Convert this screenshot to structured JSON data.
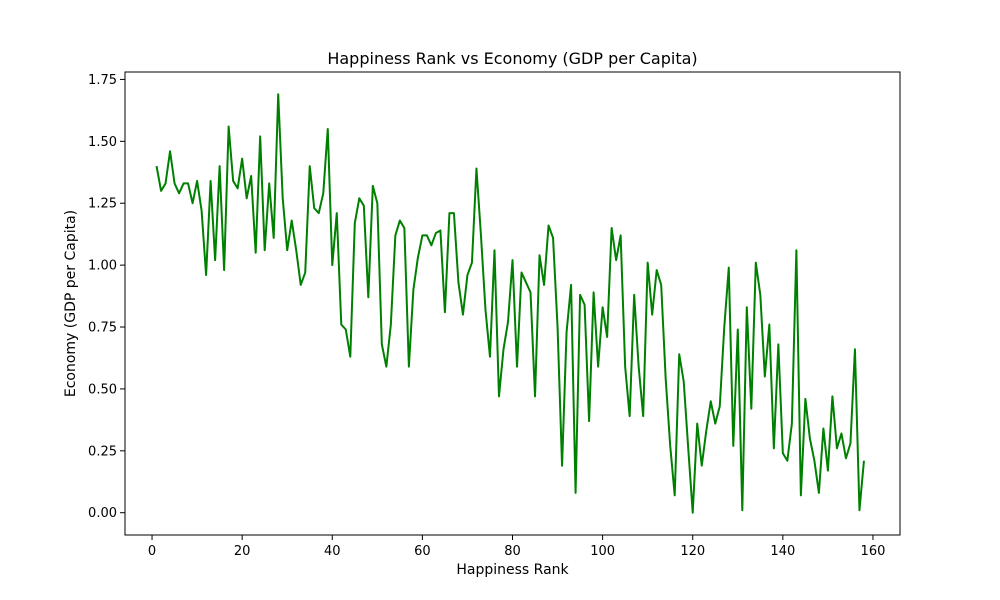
{
  "chart_data": {
    "type": "line",
    "title": "Happiness Rank vs Economy (GDP per Capita)",
    "xlabel": "Happiness Rank",
    "ylabel": "Economy (GDP per Capita)",
    "xlim": [
      -6,
      166
    ],
    "ylim": [
      -0.09,
      1.78
    ],
    "xticks": [
      0,
      20,
      40,
      60,
      80,
      100,
      120,
      140,
      160
    ],
    "xtick_labels": [
      "0",
      "20",
      "40",
      "60",
      "80",
      "100",
      "120",
      "140",
      "160"
    ],
    "yticks": [
      0.0,
      0.25,
      0.5,
      0.75,
      1.0,
      1.25,
      1.5,
      1.75
    ],
    "ytick_labels": [
      "0.00",
      "0.25",
      "0.50",
      "0.75",
      "1.00",
      "1.25",
      "1.50",
      "1.75"
    ],
    "grid": false,
    "series": [
      {
        "color": "#008000",
        "x": [
          1,
          2,
          3,
          4,
          5,
          6,
          7,
          8,
          9,
          10,
          11,
          12,
          13,
          14,
          15,
          16,
          17,
          18,
          19,
          20,
          21,
          22,
          23,
          24,
          25,
          26,
          27,
          28,
          29,
          30,
          31,
          32,
          33,
          34,
          35,
          36,
          37,
          38,
          39,
          40,
          41,
          42,
          43,
          44,
          45,
          46,
          47,
          48,
          49,
          50,
          51,
          52,
          53,
          54,
          55,
          56,
          57,
          58,
          59,
          60,
          61,
          62,
          63,
          64,
          65,
          66,
          67,
          68,
          69,
          70,
          71,
          72,
          73,
          74,
          75,
          76,
          77,
          78,
          79,
          80,
          81,
          82,
          83,
          84,
          85,
          86,
          87,
          88,
          89,
          90,
          91,
          92,
          93,
          94,
          95,
          96,
          97,
          98,
          99,
          100,
          101,
          102,
          103,
          104,
          105,
          106,
          107,
          108,
          109,
          110,
          111,
          112,
          113,
          114,
          115,
          116,
          117,
          118,
          119,
          120,
          121,
          122,
          123,
          124,
          125,
          126,
          127,
          128,
          129,
          130,
          131,
          132,
          133,
          134,
          135,
          136,
          137,
          138,
          139,
          140,
          141,
          142,
          143,
          144,
          145,
          146,
          147,
          148,
          149,
          150,
          151,
          152,
          153,
          154,
          155,
          156,
          157,
          158
        ],
        "y": [
          1.4,
          1.3,
          1.33,
          1.46,
          1.33,
          1.29,
          1.33,
          1.33,
          1.25,
          1.34,
          1.22,
          0.96,
          1.34,
          1.02,
          1.4,
          0.98,
          1.56,
          1.34,
          1.31,
          1.43,
          1.27,
          1.36,
          1.05,
          1.52,
          1.06,
          1.33,
          1.11,
          1.69,
          1.27,
          1.06,
          1.18,
          1.06,
          0.92,
          0.97,
          1.4,
          1.23,
          1.21,
          1.29,
          1.55,
          1.0,
          1.21,
          0.76,
          0.74,
          0.63,
          1.17,
          1.27,
          1.24,
          0.87,
          1.32,
          1.25,
          0.68,
          0.59,
          0.76,
          1.12,
          1.18,
          1.15,
          0.59,
          0.9,
          1.03,
          1.12,
          1.12,
          1.08,
          1.13,
          1.14,
          0.81,
          1.21,
          1.21,
          0.93,
          0.8,
          0.96,
          1.01,
          1.39,
          1.12,
          0.82,
          0.63,
          1.06,
          0.47,
          0.66,
          0.77,
          1.02,
          0.59,
          0.97,
          0.93,
          0.89,
          0.47,
          1.04,
          0.92,
          1.16,
          1.11,
          0.75,
          0.19,
          0.73,
          0.92,
          0.08,
          0.88,
          0.84,
          0.37,
          0.89,
          0.59,
          0.83,
          0.71,
          1.15,
          1.02,
          1.12,
          0.59,
          0.39,
          0.88,
          0.59,
          0.39,
          1.01,
          0.8,
          0.98,
          0.92,
          0.54,
          0.27,
          0.07,
          0.64,
          0.53,
          0.26,
          0.0,
          0.36,
          0.19,
          0.33,
          0.45,
          0.36,
          0.43,
          0.75,
          0.99,
          0.27,
          0.74,
          0.01,
          0.83,
          0.42,
          1.01,
          0.88,
          0.55,
          0.76,
          0.26,
          0.68,
          0.24,
          0.21,
          0.36,
          1.06,
          0.07,
          0.46,
          0.3,
          0.21,
          0.08,
          0.34,
          0.17,
          0.47,
          0.26,
          0.32,
          0.22,
          0.28,
          0.66,
          0.01,
          0.21
        ]
      }
    ]
  }
}
